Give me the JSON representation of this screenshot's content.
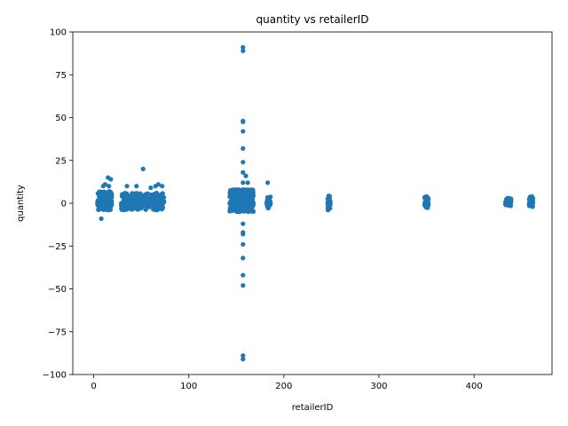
{
  "chart_data": {
    "type": "scatter",
    "title": "quantity vs retailerID",
    "xlabel": "retailerID",
    "ylabel": "quantity",
    "xlim": [
      -22,
      482
    ],
    "ylim": [
      -100,
      100
    ],
    "xticks": [
      0,
      100,
      200,
      300,
      400
    ],
    "yticks": [
      -100,
      -75,
      -50,
      -25,
      0,
      25,
      50,
      75,
      100
    ],
    "grid": false,
    "legend": "none",
    "color": "#1f77b4",
    "clusters": [
      {
        "x_range": [
          4,
          19
        ],
        "y_range": [
          -4,
          7
        ],
        "n": 260
      },
      {
        "x_range": [
          29,
          74
        ],
        "y_range": [
          -4,
          6
        ],
        "n": 420
      },
      {
        "x_range": [
          143,
          168
        ],
        "y_range": [
          -5,
          8
        ],
        "n": 520
      },
      {
        "x_range": [
          182,
          186
        ],
        "y_range": [
          -3,
          4
        ],
        "n": 50
      },
      {
        "x_range": [
          246,
          249
        ],
        "y_range": [
          -4,
          5
        ],
        "n": 40
      },
      {
        "x_range": [
          348,
          352
        ],
        "y_range": [
          -3,
          4
        ],
        "n": 40
      },
      {
        "x_range": [
          433,
          439
        ],
        "y_range": [
          -2,
          3
        ],
        "n": 50
      },
      {
        "x_range": [
          458,
          462
        ],
        "y_range": [
          -2,
          4
        ],
        "n": 50
      }
    ],
    "points": [
      {
        "x": 8,
        "y": -9
      },
      {
        "x": 10,
        "y": 10
      },
      {
        "x": 12,
        "y": 11
      },
      {
        "x": 15,
        "y": 15
      },
      {
        "x": 18,
        "y": 14
      },
      {
        "x": 16,
        "y": 10
      },
      {
        "x": 35,
        "y": 10
      },
      {
        "x": 45,
        "y": 10
      },
      {
        "x": 52,
        "y": 20
      },
      {
        "x": 60,
        "y": 9
      },
      {
        "x": 65,
        "y": 10
      },
      {
        "x": 68,
        "y": 11
      },
      {
        "x": 72,
        "y": 10
      },
      {
        "x": 157,
        "y": 91
      },
      {
        "x": 157,
        "y": 89
      },
      {
        "x": 157,
        "y": 48
      },
      {
        "x": 157,
        "y": 47.5
      },
      {
        "x": 157,
        "y": 42
      },
      {
        "x": 157,
        "y": 32
      },
      {
        "x": 157,
        "y": 24
      },
      {
        "x": 157,
        "y": 18
      },
      {
        "x": 160,
        "y": 16
      },
      {
        "x": 157,
        "y": 12
      },
      {
        "x": 162,
        "y": 12
      },
      {
        "x": 183,
        "y": 12
      },
      {
        "x": 157,
        "y": -12
      },
      {
        "x": 157,
        "y": -17
      },
      {
        "x": 157,
        "y": -18
      },
      {
        "x": 157,
        "y": -24
      },
      {
        "x": 157,
        "y": -32
      },
      {
        "x": 157,
        "y": -42
      },
      {
        "x": 157,
        "y": -48
      },
      {
        "x": 157,
        "y": -89
      },
      {
        "x": 157,
        "y": -91
      }
    ]
  }
}
